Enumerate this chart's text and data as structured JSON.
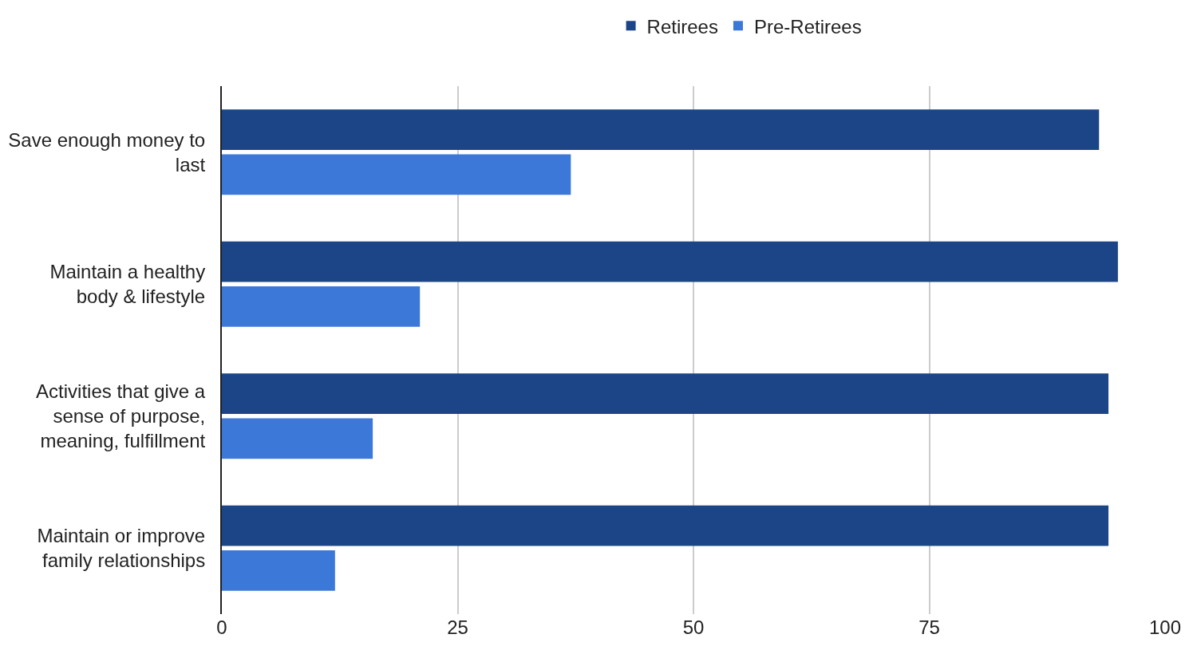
{
  "chart_data": {
    "type": "bar",
    "orientation": "horizontal",
    "categories": [
      "Save enough money to last",
      "Maintain a healthy body & lifestyle",
      "Activities that give a sense of purpose, meaning, fulfillment",
      "Maintain or improve family relationships"
    ],
    "series": [
      {
        "name": "Retirees",
        "color": "#1c4587",
        "values": [
          93,
          95,
          94,
          94
        ]
      },
      {
        "name": "Pre-Retirees",
        "color": "#3c78d8",
        "values": [
          37,
          21,
          16,
          12
        ]
      }
    ],
    "xlim": [
      0,
      100
    ],
    "xticks": [
      0,
      25,
      50,
      75,
      100
    ],
    "grid": "x",
    "legend": "top"
  }
}
